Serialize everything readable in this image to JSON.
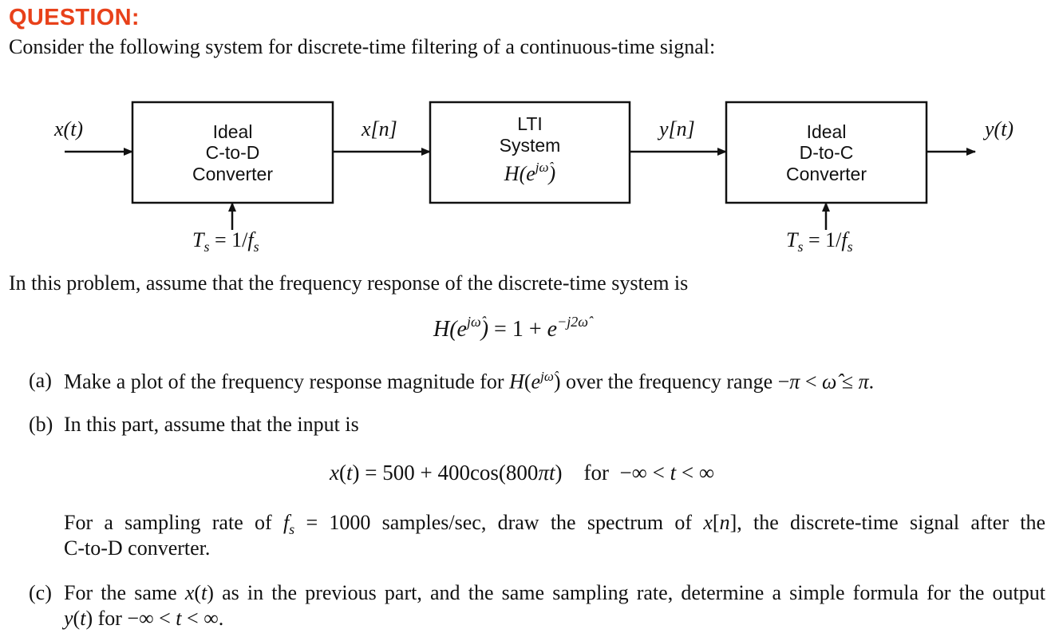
{
  "heading": "QUESTION:",
  "intro": "Consider the following system for discrete-time filtering of a continuous-time signal:",
  "diagram": {
    "input_signal": "x(t)",
    "output_signal": "y(t)",
    "signal_xn": "x[n]",
    "signal_yn": "y[n]",
    "block1": [
      "Ideal",
      "C-to-D",
      "Converter"
    ],
    "block2": [
      "LTI",
      "System"
    ],
    "block2_formula": "H(e^{jω̂})",
    "block3": [
      "Ideal",
      "D-to-C",
      "Converter"
    ],
    "sampling_label_left": "Ts = 1/fs",
    "sampling_label_right": "Ts = 1/fs"
  },
  "problem_text": "In this problem, assume that the frequency response of the discrete-time system is",
  "main_equation": "H(e^{jω̂}) = 1 + e^{−j2ω̂}",
  "part_a": {
    "tag": "(a)",
    "text": "Make a plot of the frequency response magnitude for H(e^{jω̂}) over the frequency range −π < ω̂ ≤ π."
  },
  "part_b": {
    "tag": "(b)",
    "text": "In this part, assume that the input is",
    "equation": "x(t) = 500 + 400cos(800πt)    for  −∞ < t < ∞",
    "cont_line1": "For a sampling rate of fs = 1000 samples/sec, draw the spectrum of x[n], the discrete-time signal after the",
    "cont_line2": "C-to-D converter."
  },
  "part_c": {
    "tag": "(c)",
    "line1": "For the same x(t) as in the previous part, and the same sampling rate, determine a simple formula for the output",
    "line2": "y(t) for −∞ < t < ∞."
  }
}
